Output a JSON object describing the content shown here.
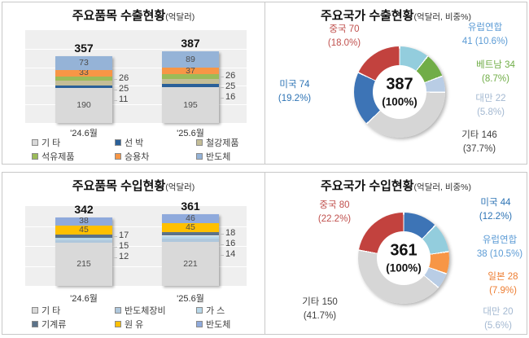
{
  "page": {
    "background": "#FFFFFF",
    "panel_border_color": "#C8C8C8"
  },
  "chart_data": [
    {
      "id": "export-items",
      "type": "bar",
      "title": "주요품목 수출현황",
      "unit": "(억달러)",
      "categories": [
        "'24.6월",
        "'25.6월"
      ],
      "totals": [
        "357",
        "387"
      ],
      "ylim": [
        0,
        500
      ],
      "grid": true,
      "legend_position": "bottom",
      "series": [
        {
          "name": "기 타",
          "color": "#D9D9D9",
          "values": [
            190,
            195
          ],
          "label": "inside"
        },
        {
          "name": "선 박",
          "color": "#2A6099",
          "values": [
            11,
            16
          ],
          "label": "callout"
        },
        {
          "name": "철강제품",
          "color": "#C4BD97",
          "values": [
            25,
            25
          ],
          "label": "callout"
        },
        {
          "name": "석유제품",
          "color": "#9BBB59",
          "values": [
            26,
            26
          ],
          "label": "callout"
        },
        {
          "name": "승용차",
          "color": "#F79646",
          "values": [
            33,
            37
          ],
          "label": "inside"
        },
        {
          "name": "반도체",
          "color": "#95B3D7",
          "values": [
            73,
            89
          ],
          "label": "inside"
        }
      ]
    },
    {
      "id": "export-countries",
      "type": "donut",
      "title": "주요국가 수출현황",
      "unit": "(억달러, 비중%)",
      "center_value": "387",
      "center_pct": "(100%)",
      "slices_order": "clockwise-from-top",
      "slices": [
        {
          "name": "유럽연합",
          "value": 41,
          "pct": 10.6,
          "color": "#93CDDD",
          "label_color": "#5B9BD5",
          "lines": [
            "유럽연합",
            "41 (10.6%)"
          ]
        },
        {
          "name": "베트남",
          "value": 34,
          "pct": 8.7,
          "color": "#71AD47",
          "label_color": "#70AD47",
          "lines": [
            "베트남 34",
            "(8.7%)"
          ]
        },
        {
          "name": "대만",
          "value": 22,
          "pct": 5.8,
          "color": "#B9CDE5",
          "label_color": "#A3B8D1",
          "lines": [
            "대만 22",
            "(5.8%)"
          ]
        },
        {
          "name": "기타",
          "value": 146,
          "pct": 37.7,
          "color": "#D6D6D6",
          "label_color": "#404040",
          "lines": [
            "기타 146",
            "(37.7%)"
          ]
        },
        {
          "name": "미국",
          "value": 74,
          "pct": 19.2,
          "color": "#3D74B6",
          "label_color": "#2E74B5",
          "lines": [
            "미국 74",
            "(19.2%)"
          ]
        },
        {
          "name": "중국",
          "value": 70,
          "pct": 18.0,
          "color": "#C2423E",
          "label_color": "#C0504D",
          "lines": [
            "중국 70",
            "(18.0%)"
          ]
        }
      ]
    },
    {
      "id": "import-items",
      "type": "bar",
      "title": "주요품목 수입현황",
      "unit": "(억달러)",
      "categories": [
        "'24.6월",
        "'25.6월"
      ],
      "totals": [
        "342",
        "361"
      ],
      "ylim": [
        0,
        400
      ],
      "grid": true,
      "legend_position": "bottom",
      "series": [
        {
          "name": "기 타",
          "color": "#D9D9D9",
          "values": [
            215,
            221
          ],
          "label": "inside"
        },
        {
          "name": "반도체장비",
          "color": "#AFC7DC",
          "values": [
            12,
            14
          ],
          "label": "callout"
        },
        {
          "name": "가 스",
          "color": "#B8D7E8",
          "values": [
            15,
            16
          ],
          "label": "callout"
        },
        {
          "name": "기계류",
          "color": "#5B7289",
          "values": [
            17,
            18
          ],
          "label": "callout"
        },
        {
          "name": "원 유",
          "color": "#FFC000",
          "values": [
            45,
            45
          ],
          "label": "inside"
        },
        {
          "name": "반도체",
          "color": "#8FAADC",
          "values": [
            38,
            46
          ],
          "label": "inside"
        }
      ]
    },
    {
      "id": "import-countries",
      "type": "donut",
      "title": "주요국가 수입현황",
      "unit": "(억달러, 비중%)",
      "center_value": "361",
      "center_pct": "(100%)",
      "slices_order": "clockwise-from-top",
      "slices": [
        {
          "name": "미국",
          "value": 44,
          "pct": 12.2,
          "color": "#3D74B6",
          "label_color": "#2E74B5",
          "lines": [
            "미국 44",
            "(12.2%)"
          ]
        },
        {
          "name": "유럽연합",
          "value": 38,
          "pct": 10.5,
          "color": "#93CDDD",
          "label_color": "#5B9BD5",
          "lines": [
            "유럽연합",
            "38 (10.5%)"
          ]
        },
        {
          "name": "일본",
          "value": 28,
          "pct": 7.9,
          "color": "#F79646",
          "label_color": "#ED7D31",
          "lines": [
            "일본 28",
            "(7.9%)"
          ]
        },
        {
          "name": "대만",
          "value": 20,
          "pct": 5.6,
          "color": "#B9CDE5",
          "label_color": "#A3B8D1",
          "lines": [
            "대만 20",
            "(5.6%)"
          ]
        },
        {
          "name": "기타",
          "value": 150,
          "pct": 41.7,
          "color": "#D6D6D6",
          "label_color": "#404040",
          "lines": [
            "기타 150",
            "(41.7%)"
          ]
        },
        {
          "name": "중국",
          "value": 80,
          "pct": 22.2,
          "color": "#C2423E",
          "label_color": "#C0504D",
          "lines": [
            "중국 80",
            "(22.2%)"
          ]
        }
      ]
    }
  ]
}
